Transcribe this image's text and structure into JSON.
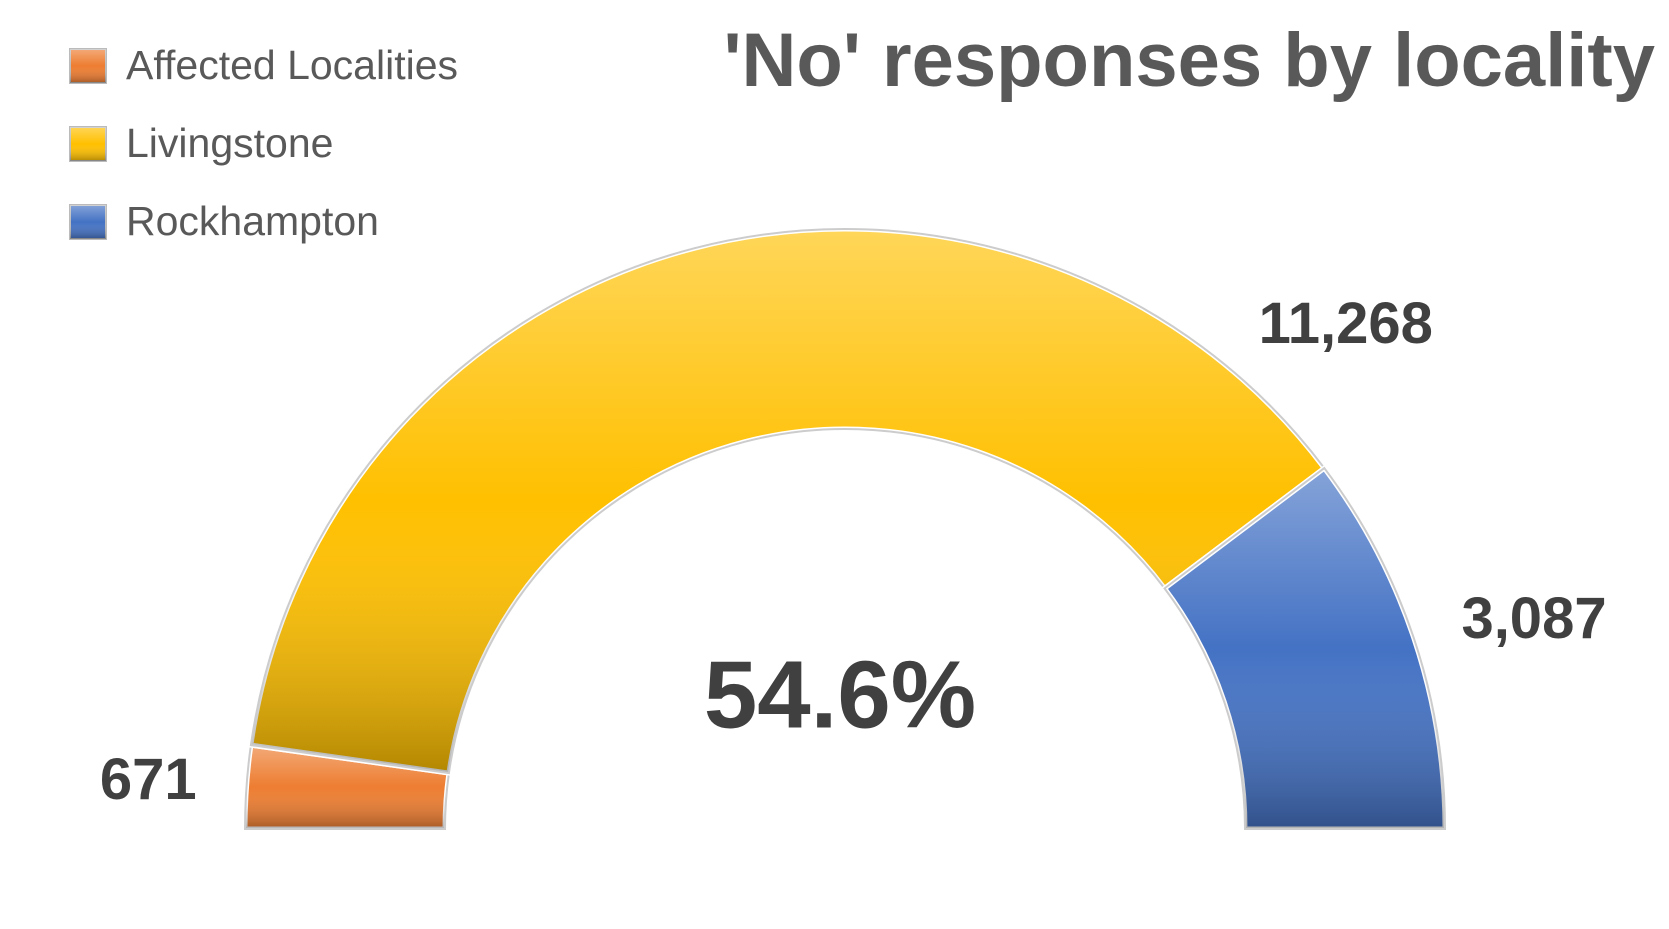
{
  "chart_data": {
    "type": "doughnut",
    "half": true,
    "title": "'No' responses by locality",
    "categories": [
      "Affected Localities",
      "Livingstone",
      "Rockhampton"
    ],
    "values": [
      671,
      11268,
      3087
    ],
    "value_labels": [
      "671",
      "11,268",
      "3,087"
    ],
    "colors": [
      "#ed7d31",
      "#ffc000",
      "#4472c4"
    ],
    "center_label": "54.6%",
    "legend": "top-left"
  }
}
